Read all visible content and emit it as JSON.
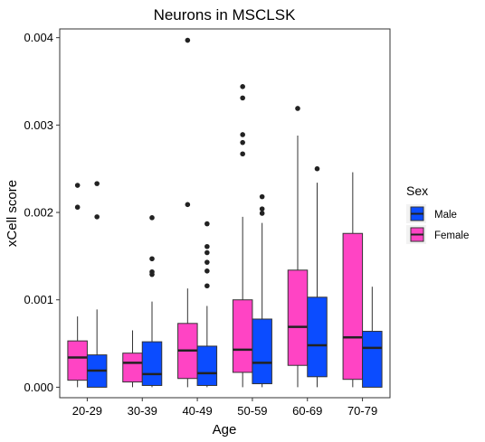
{
  "chart_data": {
    "type": "box",
    "title": "Neurons in MSCLSK",
    "xlabel": "Age",
    "ylabel": "xCell score",
    "categories": [
      "20-29",
      "30-39",
      "40-49",
      "50-59",
      "60-69",
      "70-79"
    ],
    "yticks": [
      "0.000",
      "0.001",
      "0.002",
      "0.003",
      "0.004"
    ],
    "ylim": [
      -0.00012,
      0.0041
    ],
    "grid": false,
    "legend": {
      "title": "Sex",
      "placement": "right",
      "entries": [
        "Male",
        "Female"
      ]
    },
    "series": [
      {
        "name": "Female",
        "color": "#ff44c4",
        "boxes": [
          {
            "min": 0.0,
            "q1": 8e-05,
            "median": 0.00034,
            "q3": 0.00053,
            "max": 0.00081,
            "outliers": [
              0.00206,
              0.00231
            ]
          },
          {
            "min": 0.0,
            "q1": 6e-05,
            "median": 0.00028,
            "q3": 0.00039,
            "max": 0.00065,
            "outliers": []
          },
          {
            "min": 0.0,
            "q1": 0.0001,
            "median": 0.00042,
            "q3": 0.00073,
            "max": 0.00113,
            "outliers": [
              0.00209,
              0.00397
            ]
          },
          {
            "min": 0.0,
            "q1": 0.00017,
            "median": 0.00043,
            "q3": 0.001,
            "max": 0.00195,
            "outliers": [
              0.00267,
              0.0028,
              0.00289,
              0.00331,
              0.00344
            ]
          },
          {
            "min": 0.0,
            "q1": 0.00025,
            "median": 0.00069,
            "q3": 0.00134,
            "max": 0.00288,
            "outliers": [
              0.00319
            ]
          },
          {
            "min": 0.0,
            "q1": 9e-05,
            "median": 0.00057,
            "q3": 0.00176,
            "max": 0.00246,
            "outliers": []
          }
        ]
      },
      {
        "name": "Male",
        "color": "#0b4cff",
        "boxes": [
          {
            "min": 0.0,
            "q1": 0.0,
            "median": 0.00019,
            "q3": 0.00037,
            "max": 0.00089,
            "outliers": [
              0.00195,
              0.00233
            ]
          },
          {
            "min": 0.0,
            "q1": 2e-05,
            "median": 0.00015,
            "q3": 0.00052,
            "max": 0.00098,
            "outliers": [
              0.00129,
              0.00132,
              0.00147,
              0.00194
            ]
          },
          {
            "min": 0.0,
            "q1": 2e-05,
            "median": 0.00016,
            "q3": 0.00047,
            "max": 0.00093,
            "outliers": [
              0.00116,
              0.00133,
              0.00143,
              0.00154,
              0.00161,
              0.00187
            ]
          },
          {
            "min": 0.0,
            "q1": 4e-05,
            "median": 0.00028,
            "q3": 0.00078,
            "max": 0.00188,
            "outliers": [
              0.00199,
              0.00204,
              0.00218
            ]
          },
          {
            "min": 0.0,
            "q1": 0.00012,
            "median": 0.00048,
            "q3": 0.00103,
            "max": 0.00234,
            "outliers": [
              0.0025
            ]
          },
          {
            "min": 0.0,
            "q1": 0.0,
            "median": 0.00045,
            "q3": 0.00064,
            "max": 0.00115,
            "outliers": []
          }
        ]
      }
    ]
  }
}
